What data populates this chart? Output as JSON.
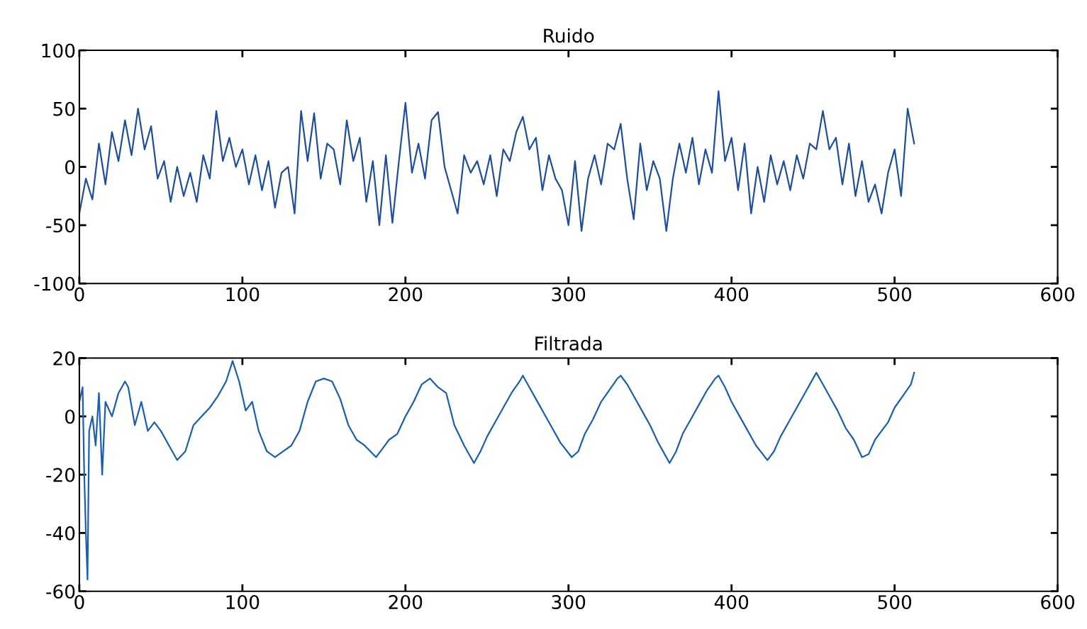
{
  "chart_data": [
    {
      "type": "line",
      "title": "Ruido",
      "xlim": [
        0,
        600
      ],
      "xticks": [
        0,
        100,
        200,
        300,
        400,
        500,
        600
      ],
      "ylim": [
        -100,
        100
      ],
      "yticks": [
        -100,
        -50,
        0,
        50,
        100
      ],
      "grid": false,
      "series": [
        {
          "color": "#1f4e9a",
          "x": [
            0,
            4,
            8,
            12,
            16,
            20,
            24,
            28,
            32,
            36,
            40,
            44,
            48,
            52,
            56,
            60,
            64,
            68,
            72,
            76,
            80,
            84,
            88,
            92,
            96,
            100,
            104,
            108,
            112,
            116,
            120,
            124,
            128,
            132,
            136,
            140,
            144,
            148,
            152,
            156,
            160,
            164,
            168,
            172,
            176,
            180,
            184,
            188,
            192,
            196,
            200,
            204,
            208,
            212,
            216,
            220,
            224,
            228,
            232,
            236,
            240,
            244,
            248,
            252,
            256,
            260,
            264,
            268,
            272,
            276,
            280,
            284,
            288,
            292,
            296,
            300,
            304,
            308,
            312,
            316,
            320,
            324,
            328,
            332,
            336,
            340,
            344,
            348,
            352,
            356,
            360,
            364,
            368,
            372,
            376,
            380,
            384,
            388,
            392,
            396,
            400,
            404,
            408,
            412,
            416,
            420,
            424,
            428,
            432,
            436,
            440,
            444,
            448,
            452,
            456,
            460,
            464,
            468,
            472,
            476,
            480,
            484,
            488,
            492,
            496,
            500,
            504,
            508,
            512
          ],
          "values": [
            -40,
            -10,
            -28,
            20,
            -15,
            30,
            5,
            40,
            10,
            50,
            15,
            35,
            -10,
            5,
            -30,
            0,
            -25,
            -5,
            -30,
            10,
            -10,
            48,
            5,
            25,
            0,
            15,
            -15,
            10,
            -20,
            5,
            -35,
            -5,
            0,
            -40,
            48,
            5,
            46,
            -10,
            20,
            15,
            -15,
            40,
            5,
            25,
            -30,
            5,
            -50,
            10,
            -48,
            5,
            55,
            -5,
            20,
            -10,
            40,
            47,
            0,
            -20,
            -40,
            10,
            -5,
            5,
            -15,
            10,
            -25,
            15,
            5,
            30,
            43,
            15,
            25,
            -20,
            10,
            -10,
            -20,
            -50,
            5,
            -55,
            -10,
            10,
            -15,
            20,
            15,
            37,
            -10,
            -45,
            20,
            -20,
            5,
            -10,
            -55,
            -10,
            20,
            -5,
            25,
            -15,
            15,
            -5,
            65,
            5,
            25,
            -20,
            20,
            -40,
            0,
            -30,
            10,
            -15,
            5,
            -20,
            10,
            -10,
            20,
            15,
            48,
            15,
            25,
            -15,
            20,
            -25,
            5,
            -30,
            -15,
            -40,
            -5,
            15,
            -25,
            50,
            20
          ]
        }
      ]
    },
    {
      "type": "line",
      "title": "Filtrada",
      "xlim": [
        0,
        600
      ],
      "xticks": [
        0,
        100,
        200,
        300,
        400,
        500,
        600
      ],
      "ylim": [
        -60,
        20
      ],
      "yticks": [
        -60,
        -40,
        -20,
        0,
        20
      ],
      "grid": false,
      "series": [
        {
          "color": "#1a5fb0",
          "x": [
            0,
            2,
            3,
            4,
            5,
            6,
            8,
            10,
            12,
            14,
            16,
            20,
            24,
            28,
            30,
            34,
            38,
            42,
            46,
            50,
            55,
            60,
            65,
            70,
            75,
            80,
            85,
            90,
            94,
            98,
            102,
            106,
            110,
            115,
            120,
            125,
            130,
            135,
            140,
            145,
            150,
            155,
            160,
            165,
            170,
            175,
            182,
            186,
            190,
            195,
            200,
            205,
            210,
            215,
            220,
            225,
            230,
            236,
            242,
            246,
            250,
            255,
            260,
            265,
            270,
            272,
            276,
            280,
            285,
            290,
            295,
            302,
            306,
            310,
            315,
            320,
            325,
            330,
            332,
            336,
            340,
            345,
            350,
            355,
            362,
            366,
            370,
            375,
            380,
            385,
            390,
            392,
            396,
            400,
            405,
            410,
            415,
            422,
            426,
            430,
            435,
            440,
            445,
            450,
            452,
            456,
            460,
            465,
            470,
            475,
            480,
            484,
            488,
            492,
            496,
            500,
            505,
            510,
            512
          ],
          "values": [
            5,
            10,
            -20,
            -40,
            -56,
            -5,
            0,
            -10,
            8,
            -20,
            5,
            0,
            8,
            12,
            10,
            -3,
            5,
            -5,
            -2,
            -5,
            -10,
            -15,
            -12,
            -3,
            0,
            3,
            7,
            12,
            19,
            12,
            2,
            5,
            -5,
            -12,
            -14,
            -12,
            -10,
            -5,
            5,
            12,
            13,
            12,
            6,
            -3,
            -8,
            -10,
            -14,
            -11,
            -8,
            -6,
            0,
            5,
            11,
            13,
            10,
            8,
            -3,
            -10,
            -16,
            -12,
            -7,
            -2,
            3,
            8,
            12,
            14,
            10,
            6,
            1,
            -4,
            -9,
            -14,
            -12,
            -6,
            -1,
            5,
            9,
            13,
            14,
            11,
            7,
            2,
            -3,
            -9,
            -16,
            -12,
            -6,
            -1,
            4,
            9,
            13,
            14,
            10,
            5,
            0,
            -5,
            -10,
            -15,
            -12,
            -7,
            -2,
            3,
            8,
            13,
            15,
            11,
            7,
            2,
            -4,
            -8,
            -14,
            -13,
            -8,
            -5,
            -2,
            3,
            7,
            11,
            15
          ]
        }
      ]
    }
  ]
}
